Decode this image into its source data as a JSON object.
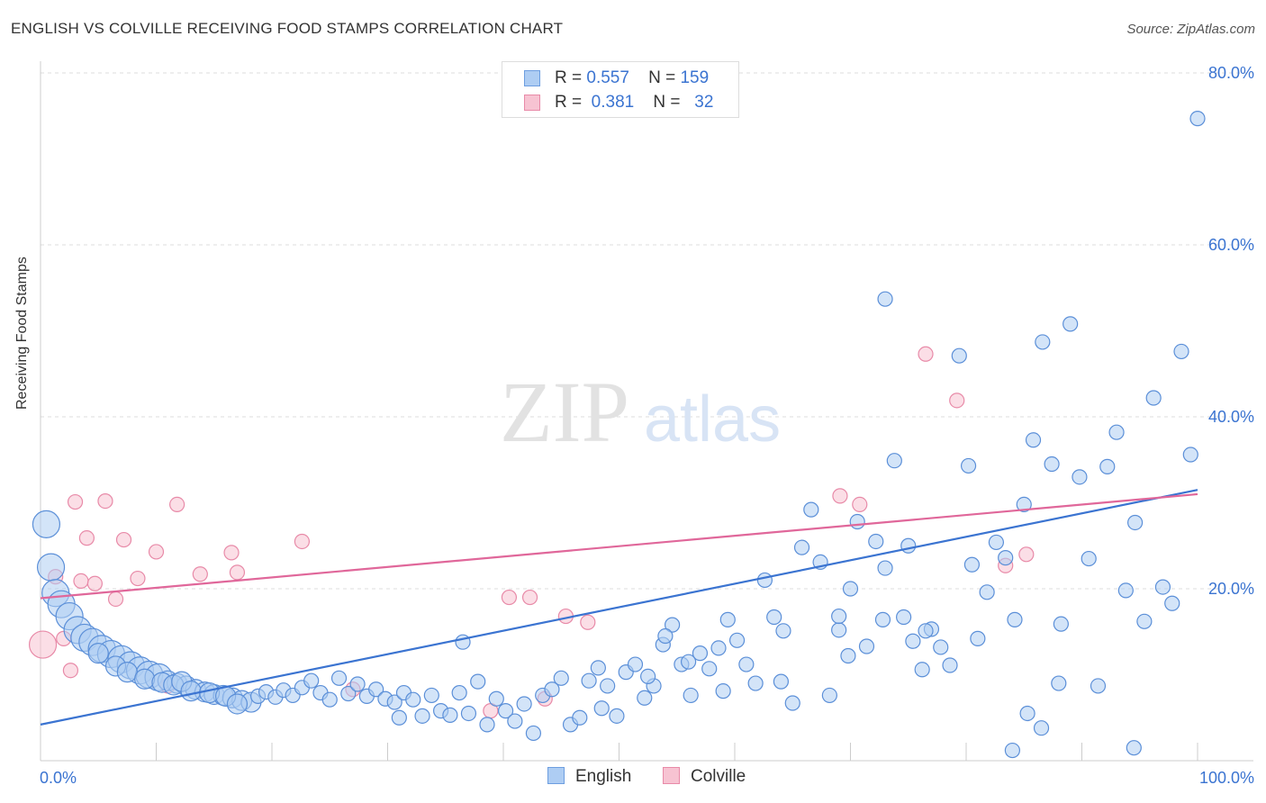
{
  "title": "ENGLISH VS COLVILLE RECEIVING FOOD STAMPS CORRELATION CHART",
  "source": "Source: ZipAtlas.com",
  "watermark": {
    "zip": "ZIP",
    "atlas": "atlas"
  },
  "legend_top": {
    "rows": [
      {
        "r_label": "R =",
        "r_value": "0.557",
        "n_label": "N =",
        "n_value": "159",
        "color": "#aecdf3",
        "border": "#6d9ee0"
      },
      {
        "r_label": "R =",
        "r_value": "0.381",
        "n_label": "N =",
        "n_value": "32",
        "color": "#f7c3d2",
        "border": "#e88aa8"
      }
    ]
  },
  "legend_bottom": [
    {
      "label": "English",
      "color": "#aecdf3",
      "border": "#6d9ee0"
    },
    {
      "label": "Colville",
      "color": "#f7c3d2",
      "border": "#e88aa8"
    }
  ],
  "chart_data": {
    "type": "scatter",
    "title": "ENGLISH VS COLVILLE RECEIVING FOOD STAMPS CORRELATION CHART",
    "xlabel": "",
    "ylabel": "Receiving Food Stamps",
    "xlim": [
      0,
      100
    ],
    "ylim": [
      0,
      80
    ],
    "x_tick_labels": [
      "0.0%",
      "100.0%"
    ],
    "y_ticks": [
      20,
      40,
      60,
      80
    ],
    "y_tick_labels": [
      "20.0%",
      "40.0%",
      "60.0%",
      "80.0%"
    ],
    "grid": true,
    "series": [
      {
        "name": "English",
        "color": "#aecdf3",
        "stroke": "#5b8fd8",
        "trend": {
          "x": [
            0,
            100
          ],
          "y": [
            4.2,
            31.5
          ],
          "color": "#3b74d1"
        },
        "points": [
          [
            0.5,
            27.5,
            3
          ],
          [
            0.9,
            22.5,
            3
          ],
          [
            1.3,
            19.5,
            3
          ],
          [
            1.8,
            18.2,
            3
          ],
          [
            2.5,
            16.8,
            3
          ],
          [
            3.2,
            15.2,
            3
          ],
          [
            3.8,
            14.3,
            3
          ],
          [
            4.5,
            13.8,
            3
          ],
          [
            5.3,
            13.0,
            3
          ],
          [
            6.1,
            12.4,
            3
          ],
          [
            7.0,
            11.8,
            3
          ],
          [
            7.8,
            11.1,
            3
          ],
          [
            8.6,
            10.5,
            3
          ],
          [
            9.4,
            10.0,
            3
          ],
          [
            10.2,
            9.7,
            3
          ],
          [
            11.0,
            9.3,
            2
          ],
          [
            11.8,
            9.0,
            2
          ],
          [
            12.6,
            8.7,
            2
          ],
          [
            13.4,
            8.3,
            2
          ],
          [
            14.2,
            8.0,
            2
          ],
          [
            15.0,
            7.7,
            2
          ],
          [
            15.8,
            7.6,
            2
          ],
          [
            16.6,
            7.3,
            2
          ],
          [
            17.4,
            7.0,
            2
          ],
          [
            18.2,
            6.8,
            2
          ],
          [
            5.0,
            12.5,
            2
          ],
          [
            6.5,
            11.0,
            2
          ],
          [
            7.5,
            10.3,
            2
          ],
          [
            9.0,
            9.5,
            2
          ],
          [
            10.5,
            9.1,
            2
          ],
          [
            11.5,
            8.8,
            2
          ],
          [
            12.2,
            9.2,
            2
          ],
          [
            13.0,
            8.1,
            2
          ],
          [
            14.6,
            7.9,
            2
          ],
          [
            16.0,
            7.5,
            2
          ],
          [
            17.0,
            6.6,
            2
          ],
          [
            18.8,
            7.5,
            1
          ],
          [
            19.5,
            8.0,
            1
          ],
          [
            20.3,
            7.4,
            1
          ],
          [
            21.0,
            8.2,
            1
          ],
          [
            21.8,
            7.6,
            1
          ],
          [
            22.6,
            8.5,
            1
          ],
          [
            23.4,
            9.3,
            1
          ],
          [
            24.2,
            7.9,
            1
          ],
          [
            25.0,
            7.1,
            1
          ],
          [
            25.8,
            9.6,
            1
          ],
          [
            26.6,
            7.8,
            1
          ],
          [
            27.4,
            8.9,
            1
          ],
          [
            28.2,
            7.5,
            1
          ],
          [
            29.0,
            8.3,
            1
          ],
          [
            29.8,
            7.2,
            1
          ],
          [
            30.6,
            6.8,
            1
          ],
          [
            31.4,
            7.9,
            1
          ],
          [
            32.2,
            7.1,
            1
          ],
          [
            33.0,
            5.2,
            1
          ],
          [
            33.8,
            7.6,
            1
          ],
          [
            34.6,
            5.8,
            1
          ],
          [
            35.4,
            5.3,
            1
          ],
          [
            36.2,
            7.9,
            1
          ],
          [
            37.0,
            5.5,
            1
          ],
          [
            37.8,
            9.2,
            1
          ],
          [
            38.6,
            4.2,
            1
          ],
          [
            39.4,
            7.2,
            1
          ],
          [
            40.2,
            5.8,
            1
          ],
          [
            41.0,
            4.6,
            1
          ],
          [
            41.8,
            6.6,
            1
          ],
          [
            42.6,
            3.2,
            1
          ],
          [
            43.4,
            7.6,
            1
          ],
          [
            44.2,
            8.3,
            1
          ],
          [
            45.0,
            9.6,
            1
          ],
          [
            45.8,
            4.2,
            1
          ],
          [
            46.6,
            5.0,
            1
          ],
          [
            47.4,
            9.3,
            1
          ],
          [
            48.2,
            10.8,
            1
          ],
          [
            49.0,
            8.7,
            1
          ],
          [
            49.8,
            5.2,
            1
          ],
          [
            50.6,
            10.3,
            1
          ],
          [
            51.4,
            11.2,
            1
          ],
          [
            52.2,
            7.3,
            1
          ],
          [
            53.0,
            8.7,
            1
          ],
          [
            53.8,
            13.5,
            1
          ],
          [
            54.6,
            15.8,
            1
          ],
          [
            55.4,
            11.2,
            1
          ],
          [
            56.2,
            7.6,
            1
          ],
          [
            57.0,
            12.5,
            1
          ],
          [
            57.8,
            10.7,
            1
          ],
          [
            58.6,
            13.1,
            1
          ],
          [
            59.4,
            16.4,
            1
          ],
          [
            60.2,
            14.0,
            1
          ],
          [
            61.0,
            11.2,
            1
          ],
          [
            61.8,
            9.0,
            1
          ],
          [
            62.6,
            21.0,
            1
          ],
          [
            63.4,
            16.7,
            1
          ],
          [
            64.2,
            15.1,
            1
          ],
          [
            65.0,
            6.7,
            1
          ],
          [
            65.8,
            24.8,
            1
          ],
          [
            66.6,
            29.2,
            1
          ],
          [
            67.4,
            23.1,
            1
          ],
          [
            68.2,
            7.6,
            1
          ],
          [
            69.0,
            15.2,
            1
          ],
          [
            69.8,
            12.2,
            1
          ],
          [
            70.6,
            27.8,
            1
          ],
          [
            71.4,
            13.3,
            1
          ],
          [
            72.2,
            25.5,
            1
          ],
          [
            73.0,
            22.4,
            1
          ],
          [
            73.8,
            34.9,
            1
          ],
          [
            74.6,
            16.7,
            1
          ],
          [
            75.4,
            13.9,
            1
          ],
          [
            76.2,
            10.6,
            1
          ],
          [
            77.0,
            15.3,
            1
          ],
          [
            77.8,
            13.2,
            1
          ],
          [
            78.6,
            11.1,
            1
          ],
          [
            79.4,
            47.1,
            1
          ],
          [
            80.2,
            34.3,
            1
          ],
          [
            81.0,
            14.2,
            1
          ],
          [
            81.8,
            19.6,
            1
          ],
          [
            82.6,
            25.4,
            1
          ],
          [
            83.4,
            23.6,
            1
          ],
          [
            84.2,
            16.4,
            1
          ],
          [
            85.0,
            29.8,
            1
          ],
          [
            85.8,
            37.3,
            1
          ],
          [
            86.6,
            48.7,
            1
          ],
          [
            87.4,
            34.5,
            1
          ],
          [
            88.2,
            15.9,
            1
          ],
          [
            89.0,
            50.8,
            1
          ],
          [
            89.8,
            33.0,
            1
          ],
          [
            90.6,
            23.5,
            1
          ],
          [
            91.4,
            8.7,
            1
          ],
          [
            92.2,
            34.2,
            1
          ],
          [
            93.0,
            38.2,
            1
          ],
          [
            93.8,
            19.8,
            1
          ],
          [
            94.6,
            27.7,
            1
          ],
          [
            95.4,
            16.2,
            1
          ],
          [
            96.2,
            42.2,
            1
          ],
          [
            97.0,
            20.2,
            1
          ],
          [
            97.8,
            18.3,
            1
          ],
          [
            98.6,
            47.6,
            1
          ],
          [
            99.4,
            35.6,
            1
          ],
          [
            100.0,
            74.7,
            1
          ],
          [
            85.3,
            5.5,
            1
          ],
          [
            86.5,
            3.8,
            1
          ],
          [
            73.0,
            53.7,
            1
          ],
          [
            84.0,
            1.2,
            1
          ],
          [
            94.5,
            1.5,
            1
          ],
          [
            75.0,
            25.0,
            1
          ],
          [
            76.5,
            15.1,
            1
          ],
          [
            36.5,
            13.8,
            1
          ],
          [
            54.0,
            14.5,
            1
          ],
          [
            31.0,
            5.0,
            1
          ],
          [
            48.5,
            6.1,
            1
          ],
          [
            64.0,
            9.2,
            1
          ],
          [
            59.0,
            8.1,
            1
          ],
          [
            52.5,
            9.8,
            1
          ],
          [
            56.0,
            11.5,
            1
          ],
          [
            69.0,
            16.8,
            1
          ],
          [
            80.5,
            22.8,
            1
          ],
          [
            88.0,
            9.0,
            1
          ],
          [
            72.8,
            16.4,
            1
          ],
          [
            70.0,
            20.0,
            1
          ]
        ]
      },
      {
        "name": "Colville",
        "color": "#f7c3d2",
        "stroke": "#e88aa8",
        "trend": {
          "x": [
            0,
            100
          ],
          "y": [
            18.9,
            31.0
          ],
          "color": "#e0679a"
        },
        "points": [
          [
            0.2,
            13.5,
            3
          ],
          [
            1.3,
            21.4,
            1
          ],
          [
            2.0,
            14.2,
            1
          ],
          [
            2.6,
            10.5,
            1
          ],
          [
            3.0,
            30.1,
            1
          ],
          [
            3.5,
            20.9,
            1
          ],
          [
            4.0,
            25.9,
            1
          ],
          [
            4.7,
            20.6,
            1
          ],
          [
            5.6,
            30.2,
            1
          ],
          [
            6.5,
            18.8,
            1
          ],
          [
            7.2,
            25.7,
            1
          ],
          [
            8.4,
            21.2,
            1
          ],
          [
            10.0,
            24.3,
            1
          ],
          [
            11.0,
            8.7,
            1
          ],
          [
            11.8,
            29.8,
            1
          ],
          [
            13.8,
            21.7,
            1
          ],
          [
            16.5,
            24.2,
            1
          ],
          [
            17.0,
            21.9,
            1
          ],
          [
            40.5,
            19.0,
            1
          ],
          [
            42.3,
            19.0,
            1
          ],
          [
            45.4,
            16.8,
            1
          ],
          [
            47.3,
            16.1,
            1
          ],
          [
            38.9,
            5.8,
            1
          ],
          [
            43.6,
            7.2,
            1
          ],
          [
            69.1,
            30.8,
            1
          ],
          [
            70.8,
            29.8,
            1
          ],
          [
            76.5,
            47.3,
            1
          ],
          [
            79.2,
            41.9,
            1
          ],
          [
            83.4,
            22.7,
            1
          ],
          [
            85.2,
            24.0,
            1
          ],
          [
            22.6,
            25.5,
            1
          ],
          [
            27.0,
            8.3,
            1
          ]
        ]
      }
    ]
  }
}
